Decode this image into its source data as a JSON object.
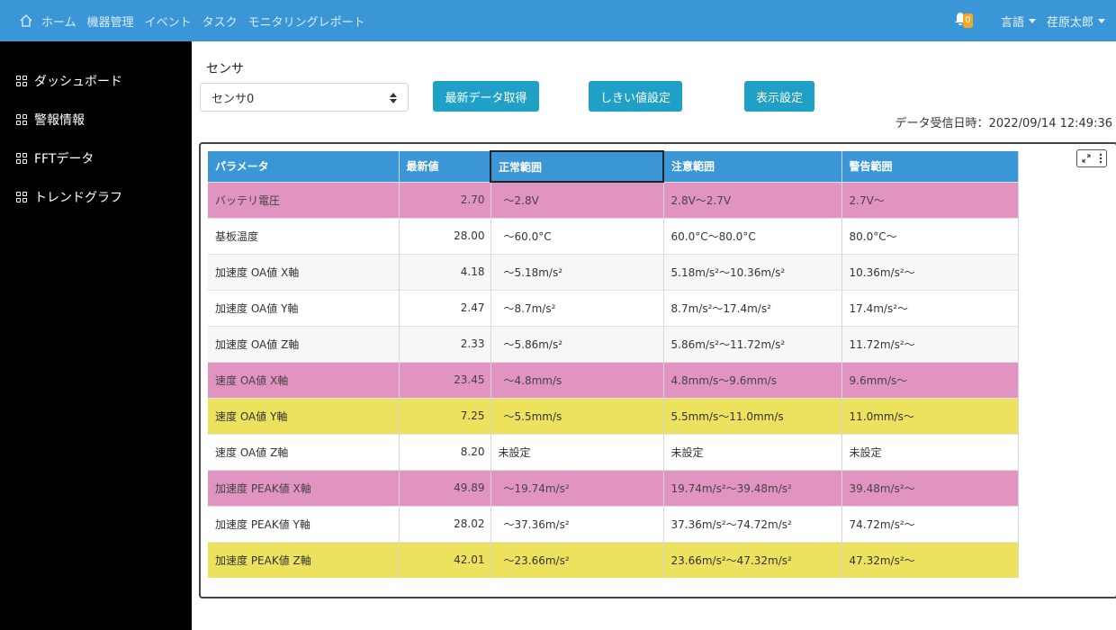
{
  "nav": {
    "items": [
      "ホーム",
      "機器管理",
      "イベント",
      "タスク",
      "モニタリングレポート"
    ],
    "badge": "0",
    "language": "言語",
    "user": "荏原太郎"
  },
  "sidebar": {
    "items": [
      "ダッシュボード",
      "警報情報",
      "FFTデータ",
      "トレンドグラフ"
    ]
  },
  "main": {
    "sensor_label": "センサ",
    "sensor_value": "センサ0",
    "buttons": [
      "最新データ取得",
      "しきい値設定",
      "表示設定"
    ],
    "received": "データ受信日時：2022/09/14 12:49:36"
  },
  "table": {
    "headers": [
      "パラメータ",
      "最新値",
      "正常範囲",
      "注意範囲",
      "警告範囲"
    ],
    "rows": [
      {
        "param": "バッテリ電圧",
        "value": "2.70",
        "normal": "～2.8V",
        "caution": "2.8V～2.7V",
        "warning": "2.7V～",
        "status": "pink"
      },
      {
        "param": "基板温度",
        "value": "28.00",
        "normal": "～60.0°C",
        "caution": "60.0°C～80.0°C",
        "warning": "80.0°C～",
        "status": "white"
      },
      {
        "param": "加速度 OA値 X軸",
        "value": "4.18",
        "normal": "～5.18m/s²",
        "caution": "5.18m/s²～10.36m/s²",
        "warning": "10.36m/s²～",
        "status": "gray"
      },
      {
        "param": "加速度 OA値 Y軸",
        "value": "2.47",
        "normal": "～8.7m/s²",
        "caution": "8.7m/s²～17.4m/s²",
        "warning": "17.4m/s²～",
        "status": "white"
      },
      {
        "param": "加速度 OA値 Z軸",
        "value": "2.33",
        "normal": "～5.86m/s²",
        "caution": "5.86m/s²～11.72m/s²",
        "warning": "11.72m/s²～",
        "status": "gray"
      },
      {
        "param": "速度 OA値 X軸",
        "value": "23.45",
        "normal": "～4.8mm/s",
        "caution": "4.8mm/s～9.6mm/s",
        "warning": "9.6mm/s～",
        "status": "pink"
      },
      {
        "param": "速度 OA値 Y軸",
        "value": "7.25",
        "normal": "～5.5mm/s",
        "caution": "5.5mm/s～11.0mm/s",
        "warning": "11.0mm/s～",
        "status": "yellow"
      },
      {
        "param": "速度 OA値 Z軸",
        "value": "8.20",
        "normal": "未設定",
        "caution": "未設定",
        "warning": "未設定",
        "status": "white"
      },
      {
        "param": "加速度 PEAK値 X軸",
        "value": "49.89",
        "normal": "～19.74m/s²",
        "caution": "19.74m/s²～39.48m/s²",
        "warning": "39.48m/s²～",
        "status": "pink"
      },
      {
        "param": "加速度 PEAK値 Y軸",
        "value": "28.02",
        "normal": "～37.36m/s²",
        "caution": "37.36m/s²～74.72m/s²",
        "warning": "74.72m/s²～",
        "status": "white"
      },
      {
        "param": "加速度 PEAK値 Z軸",
        "value": "42.01",
        "normal": "～23.66m/s²",
        "caution": "23.66m/s²～47.32m/s²",
        "warning": "47.32m/s²～",
        "status": "yellow"
      }
    ]
  },
  "colors": {
    "navbar": "#3a96d6",
    "alarm": "#e194c1",
    "caution": "#ece25e",
    "button": "#1fa0c6"
  }
}
